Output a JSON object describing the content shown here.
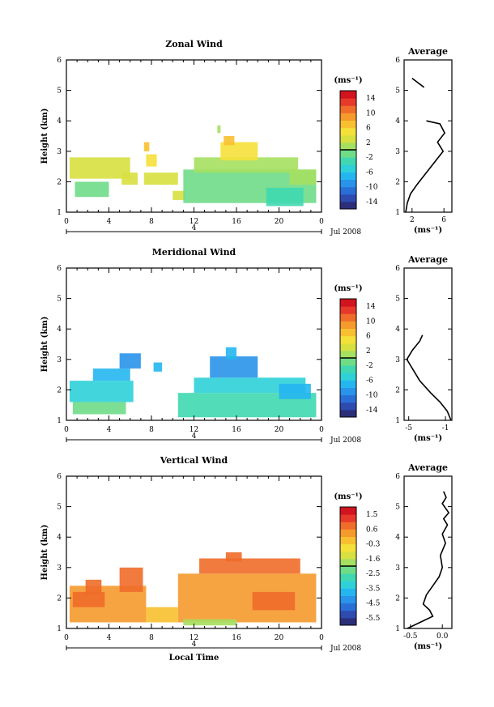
{
  "chart_data": [
    {
      "type": "heatmap",
      "title": "Zonal Wind",
      "xlabel": "",
      "ylabel": "Height (km)",
      "xlim": [
        0,
        24
      ],
      "ylim": [
        1,
        6
      ],
      "x_ticks": [
        "0",
        "4",
        "8",
        "12",
        "16",
        "20",
        "0"
      ],
      "y_ticks": [
        "1",
        "2",
        "3",
        "4",
        "5",
        "6"
      ],
      "date_label": "4",
      "date_right": "Jul 2008",
      "colorbar": {
        "unit": "(ms⁻¹)",
        "labels": [
          "14",
          "10",
          "6",
          "2",
          "-2",
          "-6",
          "-10",
          "-14"
        ],
        "range": [
          -16,
          16
        ],
        "colors": [
          "#2b2f7a",
          "#2e4bb0",
          "#2a6fd8",
          "#2a93ea",
          "#25b6f0",
          "#2fd0d8",
          "#3fd8b0",
          "#6fdc88",
          "#a5e060",
          "#d8e040",
          "#f5e03a",
          "#f8c030",
          "#f59a2c",
          "#ef6c2a",
          "#e6392a",
          "#d1141f"
        ]
      },
      "cells": [
        {
          "x": 0.3,
          "y": 2.1,
          "w": 5.7,
          "h": 0.7,
          "v": 2
        },
        {
          "x": 0.8,
          "y": 1.5,
          "w": 3.2,
          "h": 0.5,
          "v": -1
        },
        {
          "x": 5.2,
          "y": 1.9,
          "w": 1.5,
          "h": 0.4,
          "v": 3
        },
        {
          "x": 7.3,
          "y": 1.9,
          "w": 3.2,
          "h": 0.4,
          "v": 3
        },
        {
          "x": 7.5,
          "y": 2.5,
          "w": 1.0,
          "h": 0.4,
          "v": 5
        },
        {
          "x": 7.3,
          "y": 3.0,
          "w": 0.5,
          "h": 0.3,
          "v": 6
        },
        {
          "x": 10.0,
          "y": 1.4,
          "w": 1.2,
          "h": 0.3,
          "v": 2
        },
        {
          "x": 11.0,
          "y": 1.3,
          "w": 12.5,
          "h": 1.1,
          "v": -2
        },
        {
          "x": 12.0,
          "y": 2.3,
          "w": 9.8,
          "h": 0.5,
          "v": 0
        },
        {
          "x": 14.5,
          "y": 2.7,
          "w": 3.5,
          "h": 0.6,
          "v": 4
        },
        {
          "x": 14.8,
          "y": 3.2,
          "w": 1.0,
          "h": 0.3,
          "v": 6
        },
        {
          "x": 18.8,
          "y": 1.2,
          "w": 3.5,
          "h": 0.6,
          "v": -4
        },
        {
          "x": 21.0,
          "y": 1.9,
          "w": 2.5,
          "h": 0.5,
          "v": 1
        },
        {
          "x": 14.2,
          "y": 3.6,
          "w": 0.3,
          "h": 0.25,
          "v": 0
        }
      ],
      "profile": {
        "title": "Average",
        "xlabel": "(ms⁻¹)",
        "xlim": [
          1,
          7
        ],
        "x_ticks": [
          "2",
          "6"
        ],
        "x_tick_values": [
          2,
          6
        ],
        "y_ticks": [
          "1",
          "2",
          "3",
          "4",
          "5",
          "6"
        ],
        "segments": [
          [
            {
              "x": 1.2,
              "y": 1.0
            },
            {
              "x": 1.4,
              "y": 1.3
            },
            {
              "x": 1.8,
              "y": 1.6
            },
            {
              "x": 2.6,
              "y": 1.9
            },
            {
              "x": 3.8,
              "y": 2.3
            },
            {
              "x": 5.0,
              "y": 2.7
            },
            {
              "x": 5.9,
              "y": 3.0
            },
            {
              "x": 5.2,
              "y": 3.3
            },
            {
              "x": 6.1,
              "y": 3.6
            },
            {
              "x": 5.5,
              "y": 3.9
            },
            {
              "x": 3.8,
              "y": 4.0
            }
          ],
          [
            {
              "x": 3.5,
              "y": 5.1
            },
            {
              "x": 2.0,
              "y": 5.4
            }
          ]
        ]
      }
    },
    {
      "type": "heatmap",
      "title": "Meridional Wind",
      "xlabel": "",
      "ylabel": "Height (km)",
      "xlim": [
        0,
        24
      ],
      "ylim": [
        1,
        6
      ],
      "x_ticks": [
        "0",
        "4",
        "8",
        "12",
        "16",
        "20",
        "0"
      ],
      "y_ticks": [
        "1",
        "2",
        "3",
        "4",
        "5",
        "6"
      ],
      "date_label": "4",
      "date_right": "Jul 2008",
      "colorbar": {
        "unit": "(ms⁻¹)",
        "labels": [
          "14",
          "10",
          "6",
          "2",
          "-2",
          "-6",
          "-10",
          "-14"
        ],
        "range": [
          -16,
          16
        ],
        "colors": [
          "#2b2f7a",
          "#2e4bb0",
          "#2a6fd8",
          "#2a93ea",
          "#25b6f0",
          "#2fd0d8",
          "#3fd8b0",
          "#6fdc88",
          "#a5e060",
          "#d8e040",
          "#f5e03a",
          "#f8c030",
          "#f59a2c",
          "#ef6c2a",
          "#e6392a",
          "#d1141f"
        ]
      },
      "cells": [
        {
          "x": 0.3,
          "y": 1.6,
          "w": 6.0,
          "h": 0.7,
          "v": -6
        },
        {
          "x": 0.6,
          "y": 1.2,
          "w": 5.0,
          "h": 0.4,
          "v": -2
        },
        {
          "x": 2.5,
          "y": 2.3,
          "w": 3.5,
          "h": 0.4,
          "v": -7
        },
        {
          "x": 5.0,
          "y": 2.7,
          "w": 2.0,
          "h": 0.5,
          "v": -9
        },
        {
          "x": 10.5,
          "y": 1.1,
          "w": 13.0,
          "h": 0.8,
          "v": -3
        },
        {
          "x": 12.0,
          "y": 1.9,
          "w": 10.5,
          "h": 0.5,
          "v": -6
        },
        {
          "x": 13.5,
          "y": 2.4,
          "w": 4.5,
          "h": 0.7,
          "v": -9
        },
        {
          "x": 15.0,
          "y": 3.0,
          "w": 1.0,
          "h": 0.4,
          "v": -8
        },
        {
          "x": 20.0,
          "y": 1.7,
          "w": 3.0,
          "h": 0.5,
          "v": -7
        },
        {
          "x": 8.2,
          "y": 2.6,
          "w": 0.8,
          "h": 0.3,
          "v": -7
        }
      ],
      "profile": {
        "title": "Average",
        "xlabel": "(ms⁻¹)",
        "xlim": [
          -5.5,
          -0.3
        ],
        "x_ticks": [
          "-5",
          "-1"
        ],
        "x_tick_values": [
          -5,
          -1
        ],
        "y_ticks": [
          "1",
          "2",
          "3",
          "4",
          "5",
          "6"
        ],
        "segments": [
          [
            {
              "x": -0.4,
              "y": 1.0
            },
            {
              "x": -0.8,
              "y": 1.3
            },
            {
              "x": -1.6,
              "y": 1.6
            },
            {
              "x": -2.6,
              "y": 1.9
            },
            {
              "x": -3.8,
              "y": 2.3
            },
            {
              "x": -4.6,
              "y": 2.7
            },
            {
              "x": -5.2,
              "y": 3.0
            },
            {
              "x": -4.6,
              "y": 3.3
            },
            {
              "x": -3.8,
              "y": 3.6
            },
            {
              "x": -3.5,
              "y": 3.8
            }
          ]
        ]
      }
    },
    {
      "type": "heatmap",
      "title": "Vertical Wind",
      "xlabel": "Local Time",
      "ylabel": "Height (km)",
      "xlim": [
        0,
        24
      ],
      "ylim": [
        1,
        6
      ],
      "x_ticks": [
        "0",
        "4",
        "8",
        "12",
        "16",
        "20",
        "0"
      ],
      "y_ticks": [
        "1",
        "2",
        "3",
        "4",
        "5",
        "6"
      ],
      "date_label": "4",
      "date_right": "Jul 2008",
      "colorbar": {
        "unit": "(ms⁻¹)",
        "labels": [
          "1.5",
          "0.6",
          "-0.3",
          "-1.6",
          "-2.5",
          "-3.5",
          "-4.5",
          "-5.5"
        ],
        "range": [
          -6,
          2
        ],
        "colors": [
          "#2b2f7a",
          "#2e4bb0",
          "#2a6fd8",
          "#2a93ea",
          "#25b6f0",
          "#2fd0d8",
          "#3fd8b0",
          "#6fdc88",
          "#a5e060",
          "#d8e040",
          "#f5e03a",
          "#f8c030",
          "#f59a2c",
          "#ef6c2a",
          "#e6392a",
          "#d1141f"
        ]
      },
      "cells": [
        {
          "x": 0.3,
          "y": 1.2,
          "w": 7.2,
          "h": 1.2,
          "v": 0.3
        },
        {
          "x": 0.6,
          "y": 1.7,
          "w": 3.0,
          "h": 0.5,
          "v": 0.8
        },
        {
          "x": 5.0,
          "y": 2.2,
          "w": 2.2,
          "h": 0.8,
          "v": 0.6
        },
        {
          "x": 7.5,
          "y": 1.2,
          "w": 3.0,
          "h": 0.5,
          "v": -0.2
        },
        {
          "x": 10.5,
          "y": 1.2,
          "w": 13.0,
          "h": 1.6,
          "v": 0.1
        },
        {
          "x": 12.5,
          "y": 2.8,
          "w": 9.5,
          "h": 0.5,
          "v": 0.7
        },
        {
          "x": 15.0,
          "y": 3.2,
          "w": 1.5,
          "h": 0.3,
          "v": 0.8
        },
        {
          "x": 11.0,
          "y": 1.1,
          "w": 5.0,
          "h": 0.2,
          "v": -1.9
        },
        {
          "x": 17.5,
          "y": 1.6,
          "w": 4.0,
          "h": 0.6,
          "v": 0.9
        },
        {
          "x": 1.8,
          "y": 2.1,
          "w": 1.5,
          "h": 0.5,
          "v": 0.5
        }
      ],
      "profile": {
        "title": "Average",
        "xlabel": "(ms⁻¹)",
        "xlim": [
          -0.6,
          0.15
        ],
        "x_ticks": [
          "-0.5",
          "0.0"
        ],
        "x_tick_values": [
          -0.5,
          0.0
        ],
        "y_ticks": [
          "1",
          "2",
          "3",
          "4",
          "5",
          "6"
        ],
        "segments": [
          [
            {
              "x": -0.55,
              "y": 1.0
            },
            {
              "x": -0.35,
              "y": 1.2
            },
            {
              "x": -0.15,
              "y": 1.4
            },
            {
              "x": -0.2,
              "y": 1.6
            },
            {
              "x": -0.3,
              "y": 1.8
            },
            {
              "x": -0.25,
              "y": 2.1
            },
            {
              "x": -0.15,
              "y": 2.4
            },
            {
              "x": -0.05,
              "y": 2.7
            },
            {
              "x": 0.0,
              "y": 3.0
            },
            {
              "x": -0.03,
              "y": 3.4
            },
            {
              "x": 0.05,
              "y": 3.8
            },
            {
              "x": 0.0,
              "y": 4.1
            },
            {
              "x": 0.08,
              "y": 4.4
            },
            {
              "x": 0.02,
              "y": 4.6
            },
            {
              "x": 0.1,
              "y": 4.8
            },
            {
              "x": 0.0,
              "y": 5.1
            },
            {
              "x": 0.06,
              "y": 5.3
            },
            {
              "x": 0.02,
              "y": 5.5
            }
          ]
        ]
      }
    }
  ]
}
